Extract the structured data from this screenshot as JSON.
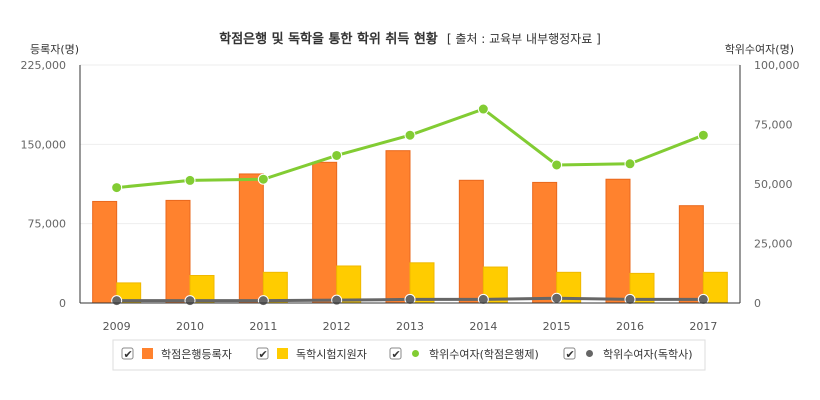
{
  "chart_data": {
    "type": "bar",
    "title": "학점은행 및 독학을 통한 학위 취득 현황",
    "subtitle": "[ 출처 : 교육부 내부행정자료 ]",
    "ylabel_left": "등록자(명)",
    "ylabel_right": "학위수여자(명)",
    "ylim_left": [
      0,
      225000
    ],
    "ylim_right": [
      0,
      100000
    ],
    "yticks_left": [
      "0",
      "75,000",
      "150,000",
      "225,000"
    ],
    "yticks_right": [
      "0",
      "25,000",
      "50,000",
      "75,000",
      "100,000"
    ],
    "categories": [
      "2009",
      "2010",
      "2011",
      "2012",
      "2013",
      "2014",
      "2015",
      "2016",
      "2017"
    ],
    "series": [
      {
        "name": "학점은행등록자",
        "kind": "bar",
        "axis": "left",
        "color": "#ff822e",
        "values": [
          96000,
          97000,
          122000,
          133000,
          144000,
          116000,
          114000,
          117000,
          92000
        ]
      },
      {
        "name": "독학시험지원자",
        "kind": "bar",
        "axis": "left",
        "color": "#ffcc00",
        "values": [
          19000,
          26000,
          29000,
          35000,
          38000,
          34000,
          29000,
          28000,
          29000
        ]
      },
      {
        "name": "학위수여자(학점은행제)",
        "kind": "line",
        "axis": "right",
        "color": "#82cc33",
        "values": [
          48500,
          51500,
          52000,
          62000,
          70500,
          81500,
          58000,
          58500,
          70500
        ]
      },
      {
        "name": "학위수여자(독학사)",
        "kind": "line",
        "axis": "right",
        "color": "#666666",
        "values": [
          1000,
          1000,
          1000,
          1200,
          1500,
          1500,
          2000,
          1500,
          1500
        ]
      }
    ],
    "grid": true,
    "legend_position": "bottom"
  }
}
